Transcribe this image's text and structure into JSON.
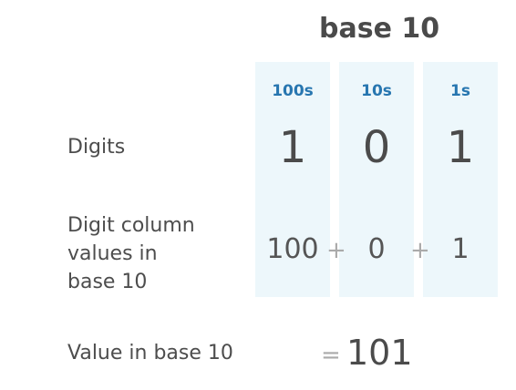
{
  "title": "base 10",
  "rows": {
    "digits_label": "Digits",
    "column_values_label": [
      "Digit column",
      "values in",
      "base 10"
    ],
    "value_label": "Value in base 10"
  },
  "columns": [
    {
      "header": "100s",
      "digit": "1",
      "column_value": "100"
    },
    {
      "header": "10s",
      "digit": "0",
      "column_value": "0"
    },
    {
      "header": "1s",
      "digit": "1",
      "column_value": "1"
    }
  ],
  "operators": {
    "plus": "+",
    "equals": "="
  },
  "result": "101",
  "colors": {
    "column_background": "#edf7fb",
    "header_text": "#2776b0",
    "body_text": "#4b4b4b",
    "operator_text": "#aaaaaa"
  }
}
